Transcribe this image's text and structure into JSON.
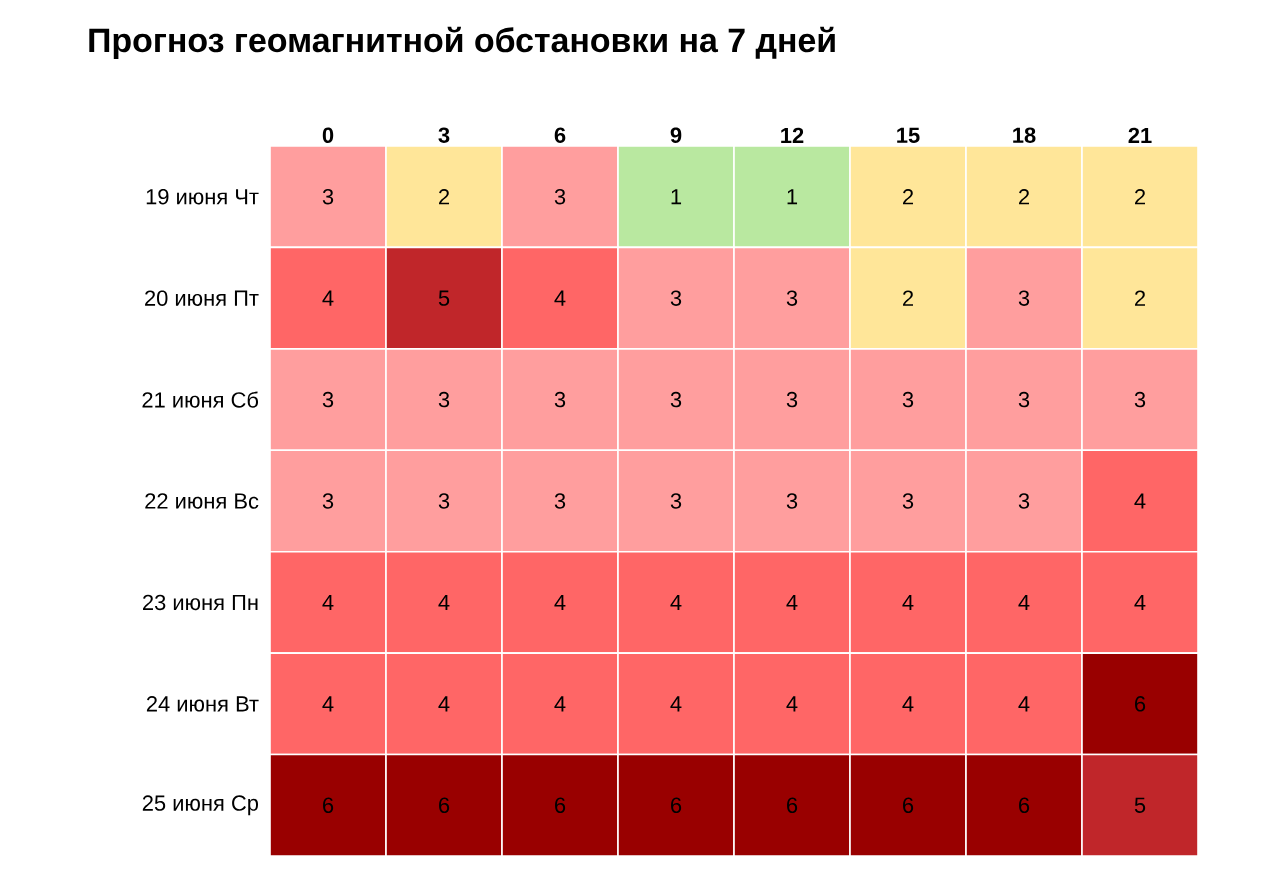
{
  "chart_data": {
    "type": "heatmap",
    "title": "Прогноз геомагнитной обстановки на 7 дней",
    "categories": [
      "0",
      "3",
      "6",
      "9",
      "12",
      "15",
      "18",
      "21"
    ],
    "y_categories": [
      "19 июня Чт",
      "20 июня Пт",
      "21 июня Сб",
      "22 июня Вс",
      "23 июня Пн",
      "24 июня Вт",
      "25 июня Ср"
    ],
    "cells": [
      [
        3,
        2,
        3,
        1,
        1,
        2,
        2,
        2
      ],
      [
        4,
        5,
        4,
        3,
        3,
        2,
        3,
        2
      ],
      [
        3,
        3,
        3,
        3,
        3,
        3,
        3,
        3
      ],
      [
        3,
        3,
        3,
        3,
        3,
        3,
        3,
        4
      ],
      [
        4,
        4,
        4,
        4,
        4,
        4,
        4,
        4
      ],
      [
        4,
        4,
        4,
        4,
        4,
        4,
        4,
        6
      ],
      [
        6,
        6,
        6,
        6,
        6,
        6,
        6,
        5
      ]
    ],
    "colors": [
      [
        "#ff9e9e",
        "#ffe699",
        "#ff9e9e",
        "#b9e8a0",
        "#b9e8a0",
        "#ffe699",
        "#ffe699",
        "#ffe699"
      ],
      [
        "#ff6666",
        "#c0262a",
        "#ff6666",
        "#ff9e9e",
        "#ff9e9e",
        "#ffe699",
        "#ff9e9e",
        "#ffe699"
      ],
      [
        "#ff9e9e",
        "#ff9e9e",
        "#ff9e9e",
        "#ff9e9e",
        "#ff9e9e",
        "#ff9e9e",
        "#ff9e9e",
        "#ff9e9e"
      ],
      [
        "#ff9e9e",
        "#ff9e9e",
        "#ff9e9e",
        "#ff9e9e",
        "#ff9e9e",
        "#ff9e9e",
        "#ff9e9e",
        "#ff6666"
      ],
      [
        "#ff6666",
        "#ff6666",
        "#ff6666",
        "#ff6666",
        "#ff6666",
        "#ff6666",
        "#ff6666",
        "#ff6666"
      ],
      [
        "#ff6666",
        "#ff6666",
        "#ff6666",
        "#ff6666",
        "#ff6666",
        "#ff6666",
        "#ff6666",
        "#990000"
      ],
      [
        "#990000",
        "#990000",
        "#990000",
        "#990000",
        "#990000",
        "#990000",
        "#990000",
        "#c0262a"
      ]
    ],
    "data_labels": true
  }
}
